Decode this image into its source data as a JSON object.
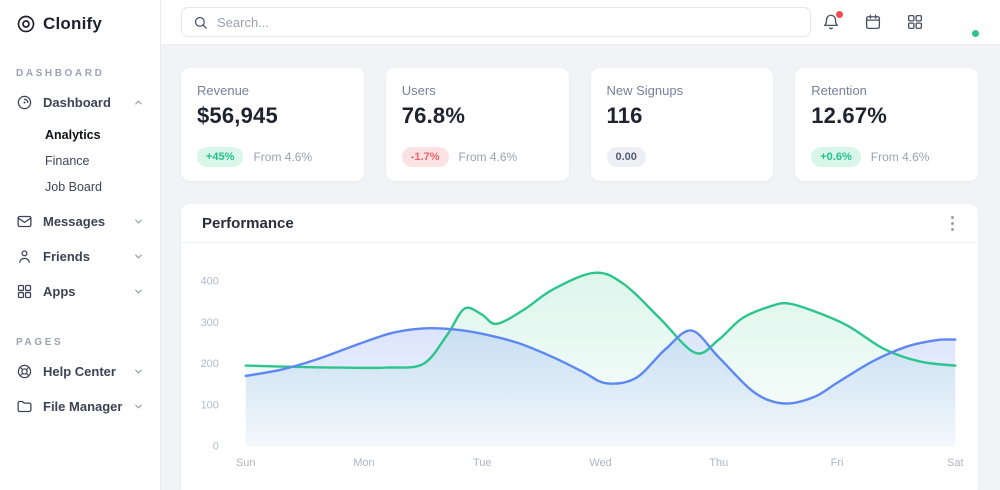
{
  "colors": {
    "green": "#2dc58c",
    "blue": "#5f87f2",
    "red": "#f14c51"
  },
  "sidebar": {
    "logo": "Clonify",
    "sections": [
      {
        "label": "DASHBOARD",
        "items": [
          {
            "label": "Dashboard",
            "icon": "dashboard-icon",
            "expanded": true,
            "children": [
              {
                "label": "Analytics",
                "active": true
              },
              {
                "label": "Finance",
                "active": false
              },
              {
                "label": "Job Board",
                "active": false
              }
            ]
          },
          {
            "label": "Messages",
            "icon": "messages-icon"
          },
          {
            "label": "Friends",
            "icon": "friends-icon"
          },
          {
            "label": "Apps",
            "icon": "apps-icon"
          }
        ]
      },
      {
        "label": "PAGES",
        "items": [
          {
            "label": "Help Center",
            "icon": "help-center-icon"
          },
          {
            "label": "File Manager",
            "icon": "folder-icon"
          }
        ]
      }
    ]
  },
  "topbar": {
    "search_placeholder": "Search...",
    "icons": [
      "bell-icon",
      "calendar-icon",
      "apps-grid-icon",
      "avatar"
    ],
    "bell_has_alert": true,
    "avatar_status": "online"
  },
  "stats": [
    {
      "title": "Revenue",
      "value": "$56,945",
      "badge": "+45%",
      "badge_type": "positive",
      "caption": "From 4.6%"
    },
    {
      "title": "Users",
      "value": "76.8%",
      "badge": "-1.7%",
      "badge_type": "negative",
      "caption": "From 4.6%"
    },
    {
      "title": "New Signups",
      "value": "116",
      "badge": "0.00",
      "badge_type": "neutral",
      "caption": ""
    },
    {
      "title": "Retention",
      "value": "12.67%",
      "badge": "+0.6%",
      "badge_type": "positive",
      "caption": "From 4.6%"
    }
  ],
  "performance": {
    "title": "Performance"
  },
  "chart_data": {
    "type": "area",
    "title": "Performance",
    "x_labels": [
      "Sun",
      "Mon",
      "Tue",
      "Wed",
      "Thu",
      "Fri",
      "Sat"
    ],
    "y_ticks": [
      0,
      100,
      200,
      300,
      400
    ],
    "ylim": [
      0,
      440
    ],
    "grid": false,
    "legend": "none",
    "series": [
      {
        "name": "green-series",
        "color": "#2dc58c",
        "points": [
          [
            0,
            195
          ],
          [
            0.4,
            192
          ],
          [
            0.8,
            190
          ],
          [
            1.2,
            190
          ],
          [
            1.5,
            199
          ],
          [
            1.7,
            268
          ],
          [
            1.85,
            333
          ],
          [
            2.0,
            318
          ],
          [
            2.12,
            296
          ],
          [
            2.35,
            330
          ],
          [
            2.6,
            380
          ],
          [
            2.95,
            420
          ],
          [
            3.2,
            392
          ],
          [
            3.5,
            310
          ],
          [
            3.8,
            226
          ],
          [
            4.0,
            258
          ],
          [
            4.2,
            310
          ],
          [
            4.45,
            340
          ],
          [
            4.6,
            345
          ],
          [
            4.85,
            322
          ],
          [
            5.1,
            290
          ],
          [
            5.4,
            235
          ],
          [
            5.7,
            205
          ],
          [
            6,
            195
          ]
        ]
      },
      {
        "name": "blue-series",
        "color": "#5f87f2",
        "points": [
          [
            0,
            170
          ],
          [
            0.3,
            185
          ],
          [
            0.6,
            210
          ],
          [
            1.0,
            252
          ],
          [
            1.25,
            275
          ],
          [
            1.5,
            285
          ],
          [
            1.75,
            283
          ],
          [
            2.0,
            272
          ],
          [
            2.3,
            250
          ],
          [
            2.6,
            215
          ],
          [
            2.85,
            180
          ],
          [
            3.05,
            152
          ],
          [
            3.3,
            165
          ],
          [
            3.55,
            235
          ],
          [
            3.77,
            280
          ],
          [
            4.0,
            215
          ],
          [
            4.3,
            130
          ],
          [
            4.55,
            103
          ],
          [
            4.8,
            118
          ],
          [
            5.0,
            153
          ],
          [
            5.3,
            205
          ],
          [
            5.6,
            242
          ],
          [
            5.85,
            257
          ],
          [
            6,
            258
          ]
        ]
      }
    ]
  }
}
